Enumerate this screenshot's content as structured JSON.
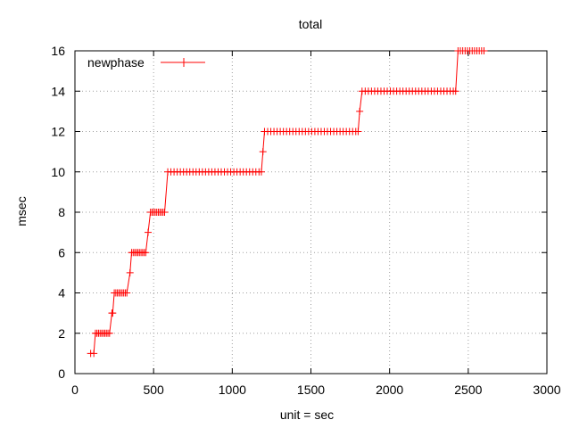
{
  "chart_data": {
    "type": "line",
    "title": "total",
    "xlabel": "unit = sec",
    "ylabel": "msec",
    "xlim": [
      0,
      3000
    ],
    "ylim": [
      0,
      16
    ],
    "x_ticks": [
      0,
      500,
      1000,
      1500,
      2000,
      2500,
      3000
    ],
    "y_ticks": [
      0,
      2,
      4,
      6,
      8,
      10,
      12,
      14,
      16
    ],
    "grid": true,
    "legend_position": "top-left",
    "series": [
      {
        "name": "newphase",
        "color": "#ff0000",
        "marker": "plus",
        "points": [
          [
            100,
            1
          ],
          [
            120,
            1
          ],
          [
            130,
            2
          ],
          [
            140,
            2
          ],
          [
            150,
            2
          ],
          [
            160,
            2
          ],
          [
            170,
            2
          ],
          [
            180,
            2
          ],
          [
            190,
            2
          ],
          [
            200,
            2
          ],
          [
            210,
            2
          ],
          [
            220,
            2
          ],
          [
            235,
            3
          ],
          [
            240,
            3
          ],
          [
            250,
            4
          ],
          [
            260,
            4
          ],
          [
            270,
            4
          ],
          [
            280,
            4
          ],
          [
            290,
            4
          ],
          [
            300,
            4
          ],
          [
            310,
            4
          ],
          [
            320,
            4
          ],
          [
            330,
            4
          ],
          [
            350,
            5
          ],
          [
            360,
            6
          ],
          [
            370,
            6
          ],
          [
            380,
            6
          ],
          [
            390,
            6
          ],
          [
            400,
            6
          ],
          [
            410,
            6
          ],
          [
            420,
            6
          ],
          [
            430,
            6
          ],
          [
            440,
            6
          ],
          [
            450,
            6
          ],
          [
            465,
            7
          ],
          [
            480,
            8
          ],
          [
            490,
            8
          ],
          [
            500,
            8
          ],
          [
            510,
            8
          ],
          [
            520,
            8
          ],
          [
            530,
            8
          ],
          [
            540,
            8
          ],
          [
            550,
            8
          ],
          [
            560,
            8
          ],
          [
            570,
            8
          ],
          [
            590,
            10
          ],
          [
            610,
            10
          ],
          [
            630,
            10
          ],
          [
            650,
            10
          ],
          [
            670,
            10
          ],
          [
            690,
            10
          ],
          [
            710,
            10
          ],
          [
            730,
            10
          ],
          [
            750,
            10
          ],
          [
            770,
            10
          ],
          [
            790,
            10
          ],
          [
            810,
            10
          ],
          [
            830,
            10
          ],
          [
            850,
            10
          ],
          [
            870,
            10
          ],
          [
            890,
            10
          ],
          [
            910,
            10
          ],
          [
            930,
            10
          ],
          [
            950,
            10
          ],
          [
            970,
            10
          ],
          [
            990,
            10
          ],
          [
            1010,
            10
          ],
          [
            1030,
            10
          ],
          [
            1050,
            10
          ],
          [
            1070,
            10
          ],
          [
            1090,
            10
          ],
          [
            1110,
            10
          ],
          [
            1130,
            10
          ],
          [
            1150,
            10
          ],
          [
            1170,
            10
          ],
          [
            1185,
            10
          ],
          [
            1195,
            11
          ],
          [
            1205,
            12
          ],
          [
            1225,
            12
          ],
          [
            1245,
            12
          ],
          [
            1265,
            12
          ],
          [
            1285,
            12
          ],
          [
            1305,
            12
          ],
          [
            1325,
            12
          ],
          [
            1345,
            12
          ],
          [
            1365,
            12
          ],
          [
            1385,
            12
          ],
          [
            1405,
            12
          ],
          [
            1425,
            12
          ],
          [
            1445,
            12
          ],
          [
            1465,
            12
          ],
          [
            1485,
            12
          ],
          [
            1505,
            12
          ],
          [
            1525,
            12
          ],
          [
            1545,
            12
          ],
          [
            1565,
            12
          ],
          [
            1585,
            12
          ],
          [
            1605,
            12
          ],
          [
            1625,
            12
          ],
          [
            1645,
            12
          ],
          [
            1665,
            12
          ],
          [
            1685,
            12
          ],
          [
            1705,
            12
          ],
          [
            1725,
            12
          ],
          [
            1745,
            12
          ],
          [
            1765,
            12
          ],
          [
            1785,
            12
          ],
          [
            1800,
            12
          ],
          [
            1810,
            13
          ],
          [
            1825,
            14
          ],
          [
            1845,
            14
          ],
          [
            1865,
            14
          ],
          [
            1885,
            14
          ],
          [
            1905,
            14
          ],
          [
            1925,
            14
          ],
          [
            1945,
            14
          ],
          [
            1965,
            14
          ],
          [
            1985,
            14
          ],
          [
            2005,
            14
          ],
          [
            2025,
            14
          ],
          [
            2045,
            14
          ],
          [
            2065,
            14
          ],
          [
            2085,
            14
          ],
          [
            2105,
            14
          ],
          [
            2125,
            14
          ],
          [
            2145,
            14
          ],
          [
            2165,
            14
          ],
          [
            2185,
            14
          ],
          [
            2205,
            14
          ],
          [
            2225,
            14
          ],
          [
            2245,
            14
          ],
          [
            2265,
            14
          ],
          [
            2285,
            14
          ],
          [
            2305,
            14
          ],
          [
            2325,
            14
          ],
          [
            2345,
            14
          ],
          [
            2365,
            14
          ],
          [
            2385,
            14
          ],
          [
            2405,
            14
          ],
          [
            2420,
            14
          ],
          [
            2435,
            16
          ],
          [
            2450,
            16
          ],
          [
            2465,
            16
          ],
          [
            2480,
            16
          ],
          [
            2495,
            16
          ],
          [
            2510,
            16
          ],
          [
            2525,
            16
          ],
          [
            2540,
            16
          ],
          [
            2555,
            16
          ],
          [
            2570,
            16
          ],
          [
            2585,
            16
          ],
          [
            2600,
            16
          ]
        ]
      }
    ]
  }
}
